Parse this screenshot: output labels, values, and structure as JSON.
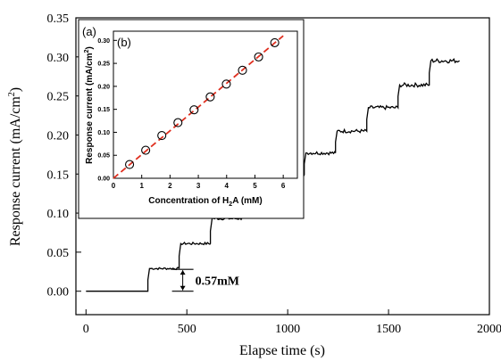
{
  "chart_data": [
    {
      "type": "line",
      "panel": "(a)",
      "xlabel": "Elapse time (s)",
      "ylabel_main": "Response current (mA/cm",
      "ylabel_sup": "2",
      "ylabel_end": ")",
      "xlim": [
        -50,
        2000
      ],
      "ylim": [
        -0.03,
        0.35
      ],
      "xticks": [
        "0",
        "500",
        "1000",
        "1500",
        "2000"
      ],
      "xtick_values": [
        0,
        500,
        1000,
        1500,
        2000
      ],
      "yticks": [
        "0.00",
        "0.05",
        "0.10",
        "0.15",
        "0.20",
        "0.25",
        "0.30",
        "0.35"
      ],
      "ytick_values": [
        0.0,
        0.05,
        0.1,
        0.15,
        0.2,
        0.25,
        0.3,
        0.35
      ],
      "grid": false,
      "annotation": "0.57mM",
      "annotation_range": [
        0.0,
        0.028
      ],
      "annotation_x": 670,
      "series": [
        {
          "steps": [
            {
              "t": 0,
              "y": 0.0
            },
            {
              "t": 315,
              "y": 0.029
            },
            {
              "t": 470,
              "y": 0.061
            },
            {
              "t": 625,
              "y": 0.093
            },
            {
              "t": 780,
              "y": 0.121
            },
            {
              "t": 935,
              "y": 0.149
            },
            {
              "t": 1090,
              "y": 0.177
            },
            {
              "t": 1245,
              "y": 0.205
            },
            {
              "t": 1400,
              "y": 0.235
            },
            {
              "t": 1555,
              "y": 0.264
            },
            {
              "t": 1710,
              "y": 0.295
            }
          ],
          "end_t": 1860,
          "color": "#000000"
        }
      ]
    },
    {
      "type": "scatter",
      "panel": "(b)",
      "xlabel_pre": "Concentration of H",
      "xlabel_sub": "2",
      "xlabel_post": "A (mM)",
      "ylabel_main": "Response current (mA/cm",
      "ylabel_sup": "2",
      "ylabel_end": ")",
      "xlim": [
        0,
        6.5
      ],
      "ylim": [
        0,
        0.32
      ],
      "xticks": [
        "0",
        "1",
        "2",
        "3",
        "4",
        "5",
        "6"
      ],
      "xtick_values": [
        0,
        1,
        2,
        3,
        4,
        5,
        6
      ],
      "yticks": [
        "0.00",
        "0.05",
        "0.10",
        "0.15",
        "0.20",
        "0.25",
        "0.30"
      ],
      "ytick_values": [
        0.0,
        0.05,
        0.1,
        0.15,
        0.2,
        0.25,
        0.3
      ],
      "x": [
        0.57,
        1.14,
        1.71,
        2.28,
        2.85,
        3.42,
        3.99,
        4.56,
        5.13,
        5.7
      ],
      "y": [
        0.03,
        0.061,
        0.093,
        0.121,
        0.149,
        0.177,
        0.205,
        0.235,
        0.264,
        0.295
      ],
      "fit": {
        "x": [
          0,
          6.0
        ],
        "y": [
          0.0,
          0.31
        ]
      },
      "marker_color": "#000000",
      "fit_color": "#e03020"
    }
  ]
}
